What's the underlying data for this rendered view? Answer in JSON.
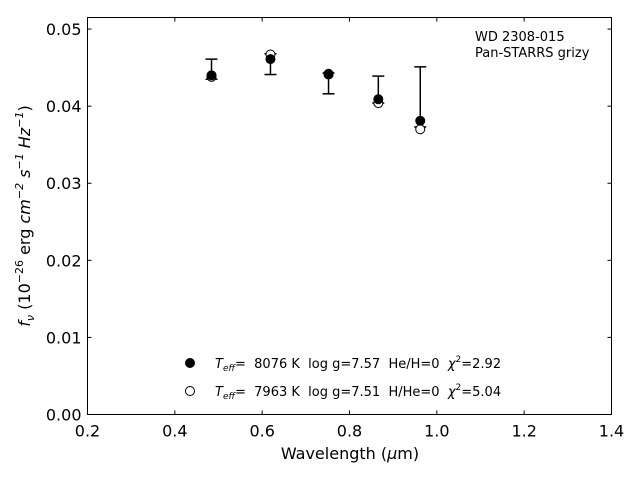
{
  "chart_data": {
    "type": "scatter",
    "title_block": [
      "WD 2308-015",
      "Pan-STARRS grizy"
    ],
    "xlabel_text": "Wavelength (",
    "xlabel_symbol": "μ",
    "xlabel_tail": "m)",
    "ylabel": {
      "fnu": "f",
      "fnu_sub": "ν",
      "paren_open": " (10",
      "exp1": "−26",
      "units": " erg ",
      "cm": "cm",
      "exp2": "−2",
      "s": " s",
      "exp3": "−1",
      "hz": " Hz",
      "exp4": "−1",
      "paren_close": ")"
    },
    "xlim": [
      0.2,
      1.4
    ],
    "ylim": [
      0.0,
      0.0515
    ],
    "xticks": [
      0.2,
      0.4,
      0.6,
      0.8,
      1.0,
      1.2,
      1.4
    ],
    "xtick_labels": [
      "0.2",
      "0.4",
      "0.6",
      "0.8",
      "1.0",
      "1.2",
      "1.4"
    ],
    "yticks": [
      0.0,
      0.01,
      0.02,
      0.03,
      0.04,
      0.05
    ],
    "ytick_labels": [
      "0.00",
      "0.01",
      "0.02",
      "0.03",
      "0.04",
      "0.05"
    ],
    "grid": false,
    "legend_position": "lower-center",
    "observed": {
      "x": [
        0.484,
        0.619,
        0.752,
        0.866,
        0.962
      ],
      "y_low": [
        0.0435,
        0.0441,
        0.0416,
        0.0404,
        0.0373
      ],
      "y_high": [
        0.0461,
        0.0468,
        0.0443,
        0.0439,
        0.0451
      ]
    },
    "series": [
      {
        "marker": "filled-circle",
        "x": [
          0.484,
          0.619,
          0.752,
          0.866,
          0.962
        ],
        "y": [
          0.044,
          0.0461,
          0.0441,
          0.0409,
          0.0381
        ],
        "legend": {
          "t": "T",
          "sub": "eff",
          "eq": "=  8076 K  log g=7.57  He/H=0  ",
          "chi": "χ",
          "sup": "2",
          "val": "=2.92"
        }
      },
      {
        "marker": "open-circle",
        "x": [
          0.484,
          0.619,
          0.752,
          0.866,
          0.962
        ],
        "y": [
          0.0438,
          0.0467,
          0.0442,
          0.0404,
          0.037
        ],
        "legend": {
          "t": "T",
          "sub": "eff",
          "eq": "=  7963 K  log g=7.51  H/He=0  ",
          "chi": "χ",
          "sup": "2",
          "val": "=5.04"
        }
      }
    ]
  }
}
